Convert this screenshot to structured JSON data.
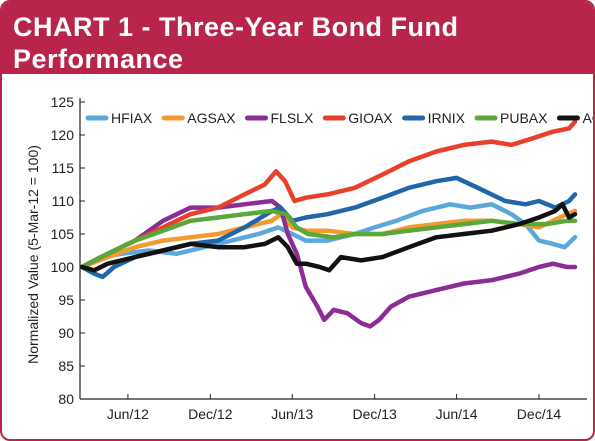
{
  "title": {
    "line1": "CHART 1 - Three-Year Bond Fund",
    "line2": "Performance"
  },
  "chart_data": {
    "type": "line",
    "ylabel": "Normalized Value (5-Mar-12 = 100)",
    "ylim": [
      80,
      125
    ],
    "yticks": [
      "80",
      "85",
      "90",
      "95",
      "100",
      "105",
      "110",
      "115",
      "120",
      "125"
    ],
    "xlim": [
      "2012-03-05",
      "2015-03-05"
    ],
    "xticks": [
      {
        "label": "Jun/12",
        "date": "2012-06-15"
      },
      {
        "label": "Dec/12",
        "date": "2012-12-15"
      },
      {
        "label": "Jun/13",
        "date": "2013-06-15"
      },
      {
        "label": "Dec/13",
        "date": "2013-12-15"
      },
      {
        "label": "Jun/14",
        "date": "2014-06-15"
      },
      {
        "label": "Dec/14",
        "date": "2014-12-15"
      }
    ],
    "grid": false,
    "legend_position": "top",
    "series": [
      {
        "name": "HFIAX",
        "color": "#5ba8dc",
        "points": [
          [
            "2012-03-05",
            100
          ],
          [
            "2012-04-15",
            101.5
          ],
          [
            "2012-06-01",
            102
          ],
          [
            "2012-08-01",
            102.5
          ],
          [
            "2012-10-01",
            102
          ],
          [
            "2012-12-01",
            103
          ],
          [
            "2013-02-01",
            104
          ],
          [
            "2013-04-01",
            105
          ],
          [
            "2013-05-15",
            106
          ],
          [
            "2013-06-15",
            105
          ],
          [
            "2013-07-15",
            104
          ],
          [
            "2013-09-01",
            104
          ],
          [
            "2013-11-01",
            105
          ],
          [
            "2013-12-15",
            106
          ],
          [
            "2014-02-01",
            107
          ],
          [
            "2014-04-01",
            108.5
          ],
          [
            "2014-06-01",
            109.5
          ],
          [
            "2014-07-15",
            109
          ],
          [
            "2014-09-01",
            109.5
          ],
          [
            "2014-10-15",
            108
          ],
          [
            "2014-11-15",
            106.5
          ],
          [
            "2014-12-15",
            104
          ],
          [
            "2015-01-15",
            103.5
          ],
          [
            "2015-02-10",
            103
          ],
          [
            "2015-03-05",
            104.5
          ]
        ]
      },
      {
        "name": "AGSAX",
        "color": "#f59a2f",
        "points": [
          [
            "2012-03-05",
            100
          ],
          [
            "2012-05-01",
            101.5
          ],
          [
            "2012-07-01",
            103
          ],
          [
            "2012-09-01",
            104
          ],
          [
            "2012-11-01",
            104.5
          ],
          [
            "2013-01-01",
            105
          ],
          [
            "2013-03-01",
            106
          ],
          [
            "2013-05-01",
            107
          ],
          [
            "2013-05-20",
            108
          ],
          [
            "2013-06-15",
            106
          ],
          [
            "2013-07-15",
            105.5
          ],
          [
            "2013-09-01",
            105.5
          ],
          [
            "2013-11-01",
            105
          ],
          [
            "2014-01-01",
            105
          ],
          [
            "2014-03-01",
            106
          ],
          [
            "2014-05-01",
            106.5
          ],
          [
            "2014-07-01",
            107
          ],
          [
            "2014-09-01",
            107
          ],
          [
            "2014-11-01",
            106.5
          ],
          [
            "2014-12-15",
            106
          ],
          [
            "2015-01-15",
            107
          ],
          [
            "2015-02-15",
            108
          ],
          [
            "2015-03-05",
            108.5
          ]
        ]
      },
      {
        "name": "FLSLX",
        "color": "#8b2d95",
        "points": [
          [
            "2012-03-05",
            100
          ],
          [
            "2012-05-01",
            102
          ],
          [
            "2012-07-01",
            104
          ],
          [
            "2012-09-01",
            107
          ],
          [
            "2012-11-01",
            109
          ],
          [
            "2013-01-01",
            109
          ],
          [
            "2013-03-01",
            109.5
          ],
          [
            "2013-05-01",
            110
          ],
          [
            "2013-05-20",
            109
          ],
          [
            "2013-06-05",
            105
          ],
          [
            "2013-06-25",
            102
          ],
          [
            "2013-07-15",
            97
          ],
          [
            "2013-08-10",
            94
          ],
          [
            "2013-08-25",
            92
          ],
          [
            "2013-09-15",
            93.5
          ],
          [
            "2013-10-15",
            93
          ],
          [
            "2013-11-15",
            91.5
          ],
          [
            "2013-12-05",
            91
          ],
          [
            "2013-12-25",
            92
          ],
          [
            "2014-01-20",
            94
          ],
          [
            "2014-03-01",
            95.5
          ],
          [
            "2014-05-01",
            96.5
          ],
          [
            "2014-07-01",
            97.5
          ],
          [
            "2014-09-01",
            98
          ],
          [
            "2014-11-01",
            99
          ],
          [
            "2014-12-15",
            100
          ],
          [
            "2015-01-15",
            100.5
          ],
          [
            "2015-02-15",
            100
          ],
          [
            "2015-03-05",
            100
          ]
        ]
      },
      {
        "name": "GIOAX",
        "color": "#e8402a",
        "points": [
          [
            "2012-03-05",
            100
          ],
          [
            "2012-05-01",
            102
          ],
          [
            "2012-07-01",
            104
          ],
          [
            "2012-09-01",
            106
          ],
          [
            "2012-11-01",
            108
          ],
          [
            "2013-01-01",
            109
          ],
          [
            "2013-03-01",
            111
          ],
          [
            "2013-04-15",
            112.5
          ],
          [
            "2013-05-10",
            114.5
          ],
          [
            "2013-05-30",
            113
          ],
          [
            "2013-06-20",
            110
          ],
          [
            "2013-07-15",
            110.5
          ],
          [
            "2013-09-01",
            111
          ],
          [
            "2013-11-01",
            112
          ],
          [
            "2014-01-01",
            114
          ],
          [
            "2014-03-01",
            116
          ],
          [
            "2014-05-01",
            117.5
          ],
          [
            "2014-07-01",
            118.5
          ],
          [
            "2014-09-01",
            119
          ],
          [
            "2014-10-15",
            118.5
          ],
          [
            "2014-12-01",
            119.5
          ],
          [
            "2015-01-15",
            120.5
          ],
          [
            "2015-02-20",
            121
          ],
          [
            "2015-03-05",
            122
          ]
        ]
      },
      {
        "name": "IRNIX",
        "color": "#2166a8",
        "points": [
          [
            "2012-03-05",
            100
          ],
          [
            "2012-04-01",
            99
          ],
          [
            "2012-04-20",
            98.5
          ],
          [
            "2012-05-15",
            100
          ],
          [
            "2012-07-01",
            101.5
          ],
          [
            "2012-09-01",
            102.5
          ],
          [
            "2012-11-01",
            103.5
          ],
          [
            "2013-01-01",
            104
          ],
          [
            "2013-03-01",
            106
          ],
          [
            "2013-05-01",
            108.5
          ],
          [
            "2013-05-20",
            109
          ],
          [
            "2013-06-15",
            107
          ],
          [
            "2013-07-15",
            107.5
          ],
          [
            "2013-09-01",
            108
          ],
          [
            "2013-11-01",
            109
          ],
          [
            "2014-01-01",
            110.5
          ],
          [
            "2014-03-01",
            112
          ],
          [
            "2014-05-01",
            113
          ],
          [
            "2014-06-15",
            113.5
          ],
          [
            "2014-08-01",
            112
          ],
          [
            "2014-10-01",
            110
          ],
          [
            "2014-11-15",
            109.5
          ],
          [
            "2014-12-15",
            110
          ],
          [
            "2015-01-20",
            109
          ],
          [
            "2015-02-20",
            110
          ],
          [
            "2015-03-05",
            111
          ]
        ]
      },
      {
        "name": "PUBAX",
        "color": "#5aa83a",
        "points": [
          [
            "2012-03-05",
            100
          ],
          [
            "2012-05-01",
            102
          ],
          [
            "2012-07-01",
            104
          ],
          [
            "2012-09-01",
            105.5
          ],
          [
            "2012-11-01",
            107
          ],
          [
            "2013-01-01",
            107.5
          ],
          [
            "2013-03-01",
            108
          ],
          [
            "2013-05-01",
            108.5
          ],
          [
            "2013-06-01",
            108
          ],
          [
            "2013-06-25",
            106
          ],
          [
            "2013-07-20",
            105
          ],
          [
            "2013-09-15",
            104.5
          ],
          [
            "2013-11-01",
            105
          ],
          [
            "2014-01-01",
            105
          ],
          [
            "2014-03-01",
            105.5
          ],
          [
            "2014-05-01",
            106
          ],
          [
            "2014-07-01",
            106.5
          ],
          [
            "2014-09-01",
            107
          ],
          [
            "2014-11-01",
            106.5
          ],
          [
            "2015-01-01",
            106.5
          ],
          [
            "2015-02-15",
            107
          ],
          [
            "2015-03-05",
            107
          ]
        ]
      },
      {
        "name": "AGG",
        "color": "#111111",
        "points": [
          [
            "2012-03-05",
            100
          ],
          [
            "2012-04-01",
            99.5
          ],
          [
            "2012-05-01",
            100.5
          ],
          [
            "2012-07-01",
            101.5
          ],
          [
            "2012-09-01",
            102.5
          ],
          [
            "2012-11-01",
            103.5
          ],
          [
            "2013-01-01",
            103
          ],
          [
            "2013-03-01",
            103
          ],
          [
            "2013-04-15",
            103.5
          ],
          [
            "2013-05-15",
            104.5
          ],
          [
            "2013-06-05",
            103
          ],
          [
            "2013-06-25",
            100.5
          ],
          [
            "2013-07-15",
            100.5
          ],
          [
            "2013-08-15",
            100
          ],
          [
            "2013-09-05",
            99.5
          ],
          [
            "2013-10-01",
            101.5
          ],
          [
            "2013-11-15",
            101
          ],
          [
            "2014-01-01",
            101.5
          ],
          [
            "2014-03-01",
            103
          ],
          [
            "2014-05-01",
            104.5
          ],
          [
            "2014-07-01",
            105
          ],
          [
            "2014-09-01",
            105.5
          ],
          [
            "2014-11-01",
            106.5
          ],
          [
            "2014-12-15",
            107.5
          ],
          [
            "2015-01-20",
            108.5
          ],
          [
            "2015-02-05",
            109.5
          ],
          [
            "2015-02-20",
            107.5
          ],
          [
            "2015-03-05",
            108
          ]
        ]
      }
    ]
  }
}
